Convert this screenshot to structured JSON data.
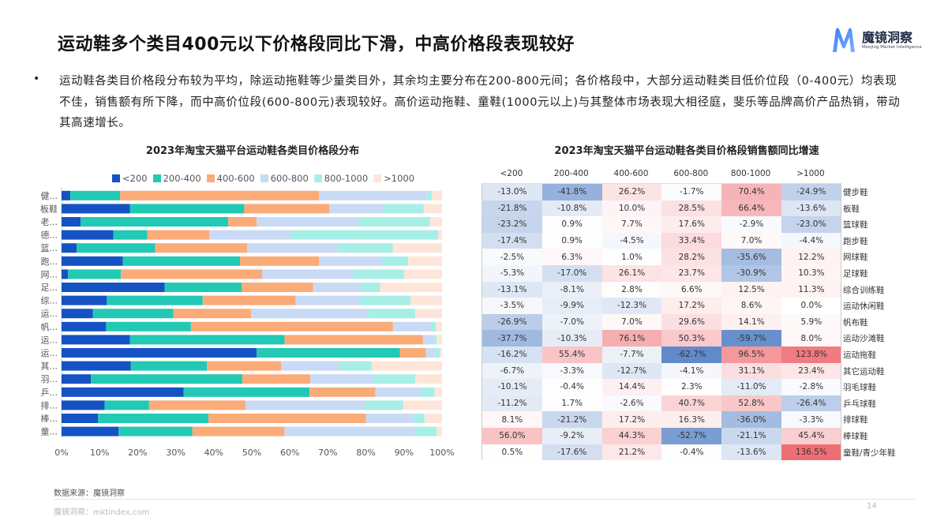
{
  "header": {
    "title": "运动鞋多个类目400元以下价格段同比下滑，中高价格段表现较好",
    "logo_cn": "魔镜洞察",
    "logo_en": "Moojing Market Intelligence"
  },
  "summary": {
    "bullet": "•",
    "text": "运动鞋各类目价格段分布较为平均，除运动拖鞋等少量类目外，其余均主要分布在200-800元间；各价格段中，大部分运动鞋类目低价位段（0-400元）均表现不佳，销售额有所下降，而中高价位段(600-800元)表现较好。高价运动拖鞋、童鞋(1000元以上)与其整体市场表现大相径庭，斐乐等品牌高价产品热销，带动其高速增长。"
  },
  "chart_data": [
    {
      "type": "bar",
      "orientation": "horizontal",
      "stacked": "percent",
      "title": "2023年淘宝天猫平台运动鞋各类目价格段分布",
      "legend_position": "top",
      "categories": [
        "健...",
        "板鞋",
        "老...",
        "德...",
        "篮...",
        "跑...",
        "网...",
        "足...",
        "综...",
        "运...",
        "帆...",
        "运...",
        "运...",
        "其...",
        "羽...",
        "乒...",
        "排...",
        "棒...",
        "童..."
      ],
      "xlim": [
        0,
        100
      ],
      "xticks": [
        "0%",
        "10%",
        "20%",
        "30%",
        "40%",
        "50%",
        "60%",
        "70%",
        "80%",
        "90%",
        "100%"
      ],
      "series": [
        {
          "name": "<200",
          "color": "#1552c4",
          "values": [
            2.3,
            18.0,
            5.0,
            13.6,
            4.0,
            16.1,
            1.7,
            27.1,
            11.9,
            8.2,
            11.7,
            18.0,
            51.3,
            18.2,
            7.7,
            32.1,
            11.3,
            9.6,
            15.0
          ]
        },
        {
          "name": "200-400",
          "color": "#22c9b4",
          "values": [
            13.1,
            30.0,
            38.8,
            8.9,
            20.6,
            30.8,
            13.9,
            20.2,
            25.2,
            21.2,
            22.3,
            40.6,
            37.6,
            20.0,
            39.8,
            33.1,
            11.7,
            29.0,
            19.4
          ]
        },
        {
          "name": "400-600",
          "color": "#fbab78",
          "values": [
            52.3,
            22.4,
            7.5,
            16.3,
            24.2,
            20.8,
            37.1,
            18.8,
            24.4,
            20.4,
            53.1,
            36.4,
            6.9,
            19.5,
            17.9,
            17.3,
            25.4,
            41.4,
            24.2
          ]
        },
        {
          "name": "600-800",
          "color": "#c9daf5",
          "values": [
            28.4,
            14.0,
            26.7,
            21.5,
            23.9,
            16.3,
            24.1,
            12.8,
            16.7,
            30.8,
            10.2,
            2.7,
            2.3,
            15.5,
            16.6,
            11.9,
            31.5,
            12.6,
            34.4
          ]
        },
        {
          "name": "800-1000",
          "color": "#a7efe6",
          "values": [
            1.2,
            10.8,
            18.8,
            38.7,
            14.4,
            7.1,
            13.2,
            4.9,
            13.5,
            12.4,
            1.1,
            0.9,
            1.3,
            8.3,
            11.0,
            3.6,
            9.9,
            2.8,
            5.6
          ]
        },
        {
          "name": ">1000",
          "color": "#fde6d9",
          "values": [
            2.7,
            4.8,
            3.2,
            1.0,
            12.9,
            8.9,
            10.0,
            16.2,
            8.3,
            7.0,
            1.6,
            1.4,
            0.6,
            18.5,
            7.0,
            2.0,
            10.2,
            4.6,
            1.4
          ]
        }
      ]
    },
    {
      "type": "heatmap",
      "title": "2023年淘宝天猫平台运动鞋各类目价格段销售额同比增速",
      "columns": [
        "<200",
        "200-400",
        "400-600",
        "600-800",
        "800-1000",
        ">1000"
      ],
      "rows": [
        "健步鞋",
        "板鞋",
        "篮球鞋",
        "跑步鞋",
        "网球鞋",
        "足球鞋",
        "综合训练鞋",
        "运动休闲鞋",
        "帆布鞋",
        "运动沙滩鞋",
        "运动拖鞋",
        "其它运动鞋",
        "羽毛球鞋",
        "乒乓球鞋",
        "排球鞋",
        "棒球鞋",
        "童鞋/青少年鞋"
      ],
      "values": [
        [
          -13.0,
          -41.8,
          26.2,
          -1.7,
          70.4,
          -24.9
        ],
        [
          -21.8,
          -10.8,
          10.0,
          28.5,
          66.4,
          -13.6
        ],
        [
          -23.2,
          0.9,
          7.7,
          17.6,
          -2.9,
          -23.0
        ],
        [
          -17.4,
          0.9,
          -4.5,
          33.4,
          7.0,
          -4.4
        ],
        [
          -2.5,
          6.3,
          1.0,
          28.2,
          -35.6,
          12.2
        ],
        [
          -5.3,
          -17.0,
          26.1,
          23.7,
          -30.9,
          10.3
        ],
        [
          -13.1,
          -8.1,
          2.8,
          6.6,
          12.5,
          11.3
        ],
        [
          -3.5,
          -9.9,
          -12.3,
          17.2,
          8.6,
          0.0
        ],
        [
          -26.9,
          -7.0,
          7.0,
          29.6,
          14.1,
          5.9
        ],
        [
          -37.7,
          -10.3,
          76.1,
          50.3,
          -59.7,
          8.0
        ],
        [
          -16.2,
          55.4,
          -7.7,
          -62.7,
          96.5,
          123.8
        ],
        [
          -6.7,
          -3.3,
          -12.7,
          -4.1,
          31.1,
          23.4
        ],
        [
          -10.1,
          -0.4,
          14.4,
          2.3,
          -11.0,
          -2.8
        ],
        [
          -11.2,
          1.7,
          -2.6,
          40.7,
          52.8,
          -26.4
        ],
        [
          8.1,
          -21.2,
          17.2,
          16.3,
          -36.0,
          -3.3
        ],
        [
          56.0,
          -9.2,
          44.3,
          -52.7,
          -21.1,
          45.4
        ],
        [
          0.5,
          -17.6,
          21.2,
          -0.4,
          -13.6,
          136.5
        ]
      ],
      "unit": "%",
      "colors": {
        "negative": "#5b86c8",
        "positive": "#ef6a70",
        "zero": "#ffffff"
      }
    }
  ],
  "footer": {
    "source": "数据来源：魔镜洞察",
    "site": "魔镜洞察：mktindex.com",
    "page": "14"
  }
}
